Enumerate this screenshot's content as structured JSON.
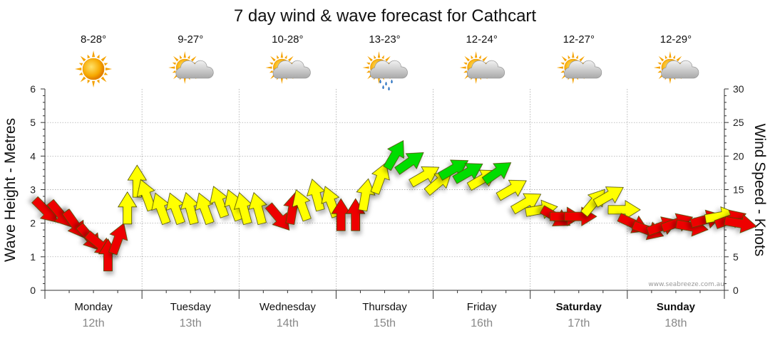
{
  "chart_data": {
    "type": "line",
    "title": "7 day wind & wave forecast for Cathcart",
    "ylabel_left": "Wave Height - Metres",
    "ylabel_right": "Wind Speed - Knots",
    "ylim_left": [
      0,
      6
    ],
    "ylim_right": [
      0,
      30
    ],
    "yticks_left": [
      "0",
      "1",
      "2",
      "3",
      "4",
      "5",
      "6"
    ],
    "yticks_right": [
      "0",
      "5",
      "10",
      "15",
      "20",
      "25",
      "30"
    ],
    "credit": "www.seabreeze.com.au",
    "days": [
      {
        "name": "Monday",
        "date": "12th",
        "temp": "8-28°",
        "icon": "sunny-icon",
        "bold": false
      },
      {
        "name": "Tuesday",
        "date": "13th",
        "temp": "9-27°",
        "icon": "partly-cloudy-icon",
        "bold": false
      },
      {
        "name": "Wednesday",
        "date": "14th",
        "temp": "10-28°",
        "icon": "partly-cloudy-icon",
        "bold": false
      },
      {
        "name": "Thursday",
        "date": "15th",
        "temp": "13-23°",
        "icon": "showers-icon",
        "bold": false
      },
      {
        "name": "Friday",
        "date": "16th",
        "temp": "12-24°",
        "icon": "partly-cloudy-icon",
        "bold": false
      },
      {
        "name": "Saturday",
        "date": "17th",
        "temp": "12-27°",
        "icon": "partly-cloudy-icon",
        "bold": true
      },
      {
        "name": "Sunday",
        "date": "18th",
        "temp": "12-29°",
        "icon": "partly-cloudy-icon",
        "bold": true
      }
    ],
    "wind_series": {
      "name": "Wind Speed",
      "points": [
        {
          "t": 0.0,
          "knots": 12,
          "dir": 135,
          "color": "#ee0000"
        },
        {
          "t": 0.15,
          "knots": 11.5,
          "dir": 140,
          "color": "#ee0000"
        },
        {
          "t": 0.3,
          "knots": 10,
          "dir": 145,
          "color": "#ee0000"
        },
        {
          "t": 0.45,
          "knots": 8,
          "dir": 140,
          "color": "#ee0000"
        },
        {
          "t": 0.55,
          "knots": 7,
          "dir": 130,
          "color": "#ee0000"
        },
        {
          "t": 0.65,
          "knots": 5,
          "dir": 0,
          "color": "#ee0000"
        },
        {
          "t": 0.75,
          "knots": 7.5,
          "dir": 20,
          "color": "#ee0000"
        },
        {
          "t": 0.85,
          "knots": 12,
          "dir": 0,
          "color": "#ffff00"
        },
        {
          "t": 0.95,
          "knots": 16,
          "dir": 0,
          "color": "#ffff00"
        },
        {
          "t": 1.05,
          "knots": 14,
          "dir": 340,
          "color": "#ffff00"
        },
        {
          "t": 1.2,
          "knots": 12,
          "dir": 340,
          "color": "#ffff00"
        },
        {
          "t": 1.35,
          "knots": 12,
          "dir": 340,
          "color": "#ffff00"
        },
        {
          "t": 1.5,
          "knots": 12,
          "dir": 345,
          "color": "#ffff00"
        },
        {
          "t": 1.65,
          "knots": 12,
          "dir": 340,
          "color": "#ffff00"
        },
        {
          "t": 1.8,
          "knots": 13,
          "dir": 340,
          "color": "#ffff00"
        },
        {
          "t": 1.95,
          "knots": 12.5,
          "dir": 340,
          "color": "#ffff00"
        },
        {
          "t": 2.05,
          "knots": 12,
          "dir": 345,
          "color": "#ffff00"
        },
        {
          "t": 2.2,
          "knots": 12,
          "dir": 345,
          "color": "#ffff00"
        },
        {
          "t": 2.4,
          "knots": 11,
          "dir": 140,
          "color": "#ee0000"
        },
        {
          "t": 2.55,
          "knots": 12,
          "dir": 10,
          "color": "#ee0000"
        },
        {
          "t": 2.65,
          "knots": 12.5,
          "dir": 340,
          "color": "#ffff00"
        },
        {
          "t": 2.8,
          "knots": 14,
          "dir": 345,
          "color": "#ffff00"
        },
        {
          "t": 2.95,
          "knots": 13,
          "dir": 340,
          "color": "#ffff00"
        },
        {
          "t": 3.05,
          "knots": 11,
          "dir": 0,
          "color": "#ee0000"
        },
        {
          "t": 3.2,
          "knots": 11,
          "dir": 0,
          "color": "#ee0000"
        },
        {
          "t": 3.3,
          "knots": 14,
          "dir": 10,
          "color": "#ffff00"
        },
        {
          "t": 3.45,
          "knots": 16.5,
          "dir": 20,
          "color": "#ffff00"
        },
        {
          "t": 3.6,
          "knots": 20,
          "dir": 30,
          "color": "#00dd00"
        },
        {
          "t": 3.75,
          "knots": 19,
          "dir": 55,
          "color": "#00dd00"
        },
        {
          "t": 3.9,
          "knots": 17,
          "dir": 60,
          "color": "#ffff00"
        },
        {
          "t": 4.05,
          "knots": 16,
          "dir": 50,
          "color": "#ffff00"
        },
        {
          "t": 4.2,
          "knots": 18,
          "dir": 60,
          "color": "#00dd00"
        },
        {
          "t": 4.35,
          "knots": 17.5,
          "dir": 60,
          "color": "#00dd00"
        },
        {
          "t": 4.5,
          "knots": 16.5,
          "dir": 60,
          "color": "#ffff00"
        },
        {
          "t": 4.65,
          "knots": 17.5,
          "dir": 55,
          "color": "#00dd00"
        },
        {
          "t": 4.8,
          "knots": 15,
          "dir": 60,
          "color": "#ffff00"
        },
        {
          "t": 4.95,
          "knots": 13,
          "dir": 60,
          "color": "#ffff00"
        },
        {
          "t": 5.1,
          "knots": 12,
          "dir": 80,
          "color": "#ffff00"
        },
        {
          "t": 5.25,
          "knots": 11,
          "dir": 120,
          "color": "#ee0000"
        },
        {
          "t": 5.35,
          "knots": 11,
          "dir": 90,
          "color": "#ee0000"
        },
        {
          "t": 5.5,
          "knots": 11,
          "dir": 90,
          "color": "#ee0000"
        },
        {
          "t": 5.65,
          "knots": 13,
          "dir": 40,
          "color": "#ffff00"
        },
        {
          "t": 5.8,
          "knots": 14,
          "dir": 60,
          "color": "#ffff00"
        },
        {
          "t": 5.95,
          "knots": 12,
          "dir": 90,
          "color": "#ffff00"
        },
        {
          "t": 6.05,
          "knots": 10,
          "dir": 115,
          "color": "#ee0000"
        },
        {
          "t": 6.2,
          "knots": 9,
          "dir": 110,
          "color": "#ee0000"
        },
        {
          "t": 6.35,
          "knots": 9.5,
          "dir": 70,
          "color": "#ee0000"
        },
        {
          "t": 6.5,
          "knots": 10,
          "dir": 70,
          "color": "#ee0000"
        },
        {
          "t": 6.65,
          "knots": 9.5,
          "dir": 100,
          "color": "#ee0000"
        },
        {
          "t": 6.8,
          "knots": 10.5,
          "dir": 75,
          "color": "#ee0000"
        },
        {
          "t": 6.95,
          "knots": 11,
          "dir": 80,
          "color": "#ffff00"
        },
        {
          "t": 7.05,
          "knots": 10.5,
          "dir": 70,
          "color": "#ee0000"
        },
        {
          "t": 7.15,
          "knots": 10,
          "dir": 100,
          "color": "#ee0000"
        }
      ]
    }
  }
}
